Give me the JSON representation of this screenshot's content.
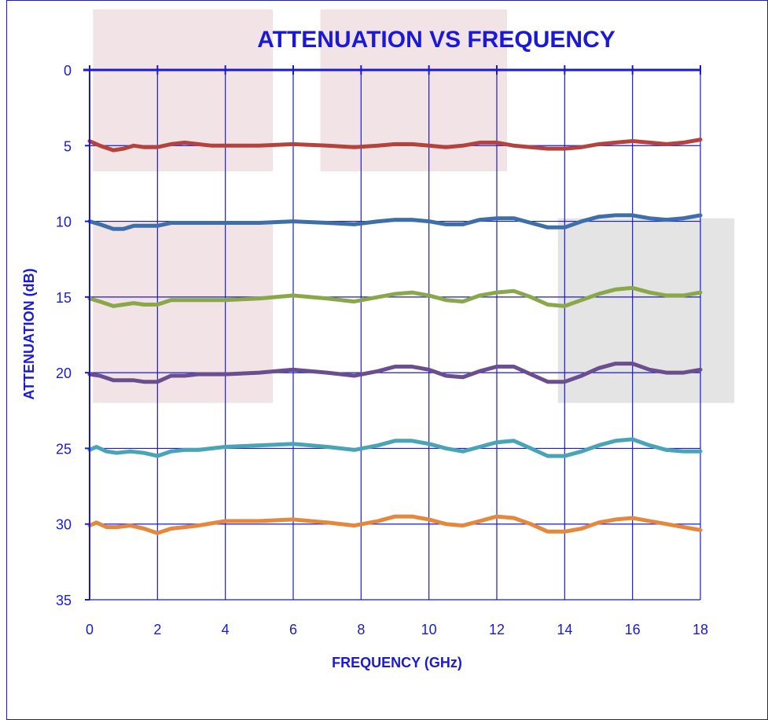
{
  "chart_data": {
    "type": "line",
    "title": "ATTENUATION VS FREQUENCY",
    "xlabel": "FREQUENCY (GHz)",
    "ylabel": "ATTENUATION (dB)",
    "xlim": [
      0,
      18
    ],
    "ylim": [
      0,
      35
    ],
    "y_inverted": true,
    "grid": true,
    "xticks": [
      "0",
      "2",
      "4",
      "6",
      "8",
      "10",
      "12",
      "14",
      "16",
      "18"
    ],
    "yticks": [
      "0",
      "5",
      "10",
      "15",
      "20",
      "25",
      "30",
      "35"
    ],
    "colors": {
      "axis": "#1a1ad6",
      "grid": "#1a1ad6",
      "band_pink": "#f2e4e6",
      "band_gray": "#e4e4e4"
    },
    "shaded_regions": [
      {
        "x": [
          0.1,
          5.4
        ],
        "y": [
          -4,
          6.7
        ],
        "color": "pink"
      },
      {
        "x": [
          6.8,
          12.3
        ],
        "y": [
          -4,
          6.7
        ],
        "color": "pink"
      },
      {
        "x": [
          0.1,
          5.4
        ],
        "y": [
          10,
          22
        ],
        "color": "pink"
      },
      {
        "x": [
          13.8,
          19.0
        ],
        "y": [
          9.8,
          22
        ],
        "color": "gray"
      }
    ],
    "series": [
      {
        "color": "#b5433d",
        "x": [
          0,
          0.3,
          0.7,
          1.0,
          1.3,
          1.6,
          2.0,
          2.4,
          2.8,
          3.2,
          3.6,
          4.0,
          5.0,
          6.0,
          7.0,
          7.8,
          8.5,
          9.0,
          9.5,
          10.0,
          10.5,
          11.0,
          11.5,
          12.0,
          12.5,
          13.0,
          13.5,
          14.0,
          14.5,
          15.0,
          15.5,
          16.0,
          16.5,
          17.0,
          17.5,
          18.0
        ],
        "y": [
          4.7,
          5.0,
          5.3,
          5.2,
          5.0,
          5.1,
          5.1,
          4.9,
          4.8,
          4.9,
          5.0,
          5.0,
          5.0,
          4.9,
          5.0,
          5.1,
          5.0,
          4.9,
          4.9,
          5.0,
          5.1,
          5.0,
          4.8,
          4.8,
          5.0,
          5.1,
          5.2,
          5.2,
          5.1,
          4.9,
          4.8,
          4.7,
          4.8,
          4.9,
          4.8,
          4.6
        ]
      },
      {
        "color": "#3f6fa8",
        "x": [
          0,
          0.3,
          0.7,
          1.0,
          1.3,
          1.6,
          2.0,
          2.4,
          2.8,
          3.2,
          4.0,
          5.0,
          6.0,
          7.0,
          7.8,
          8.5,
          9.0,
          9.5,
          10.0,
          10.5,
          11.0,
          11.5,
          12.0,
          12.5,
          13.0,
          13.5,
          14.0,
          14.5,
          15.0,
          15.5,
          16.0,
          16.5,
          17.0,
          17.5,
          18.0
        ],
        "y": [
          10.0,
          10.2,
          10.5,
          10.5,
          10.3,
          10.3,
          10.3,
          10.1,
          10.1,
          10.1,
          10.1,
          10.1,
          10.0,
          10.1,
          10.2,
          10.0,
          9.9,
          9.9,
          10.0,
          10.2,
          10.2,
          9.9,
          9.8,
          9.8,
          10.1,
          10.4,
          10.4,
          10.0,
          9.7,
          9.6,
          9.6,
          9.8,
          9.9,
          9.8,
          9.6
        ]
      },
      {
        "color": "#8aa84a",
        "x": [
          0,
          0.3,
          0.7,
          1.0,
          1.3,
          1.6,
          2.0,
          2.4,
          2.8,
          3.2,
          4.0,
          5.0,
          6.0,
          7.0,
          7.8,
          8.5,
          9.0,
          9.5,
          10.0,
          10.5,
          11.0,
          11.5,
          12.0,
          12.5,
          13.0,
          13.5,
          14.0,
          14.5,
          15.0,
          15.5,
          16.0,
          16.5,
          17.0,
          17.5,
          18.0
        ],
        "y": [
          15.1,
          15.3,
          15.6,
          15.5,
          15.4,
          15.5,
          15.5,
          15.2,
          15.2,
          15.2,
          15.2,
          15.1,
          14.9,
          15.1,
          15.3,
          15.0,
          14.8,
          14.7,
          14.9,
          15.2,
          15.3,
          14.9,
          14.7,
          14.6,
          15.0,
          15.5,
          15.6,
          15.2,
          14.8,
          14.5,
          14.4,
          14.7,
          14.9,
          14.9,
          14.7
        ]
      },
      {
        "color": "#6a4e8e",
        "x": [
          0,
          0.3,
          0.7,
          1.0,
          1.3,
          1.6,
          2.0,
          2.4,
          2.8,
          3.2,
          4.0,
          5.0,
          6.0,
          7.0,
          7.8,
          8.5,
          9.0,
          9.5,
          10.0,
          10.5,
          11.0,
          11.5,
          12.0,
          12.5,
          13.0,
          13.5,
          14.0,
          14.5,
          15.0,
          15.5,
          16.0,
          16.5,
          17.0,
          17.5,
          18.0
        ],
        "y": [
          20.1,
          20.2,
          20.5,
          20.5,
          20.5,
          20.6,
          20.6,
          20.2,
          20.2,
          20.1,
          20.1,
          20.0,
          19.8,
          20.0,
          20.2,
          19.9,
          19.6,
          19.6,
          19.8,
          20.2,
          20.3,
          19.9,
          19.6,
          19.6,
          20.1,
          20.6,
          20.6,
          20.2,
          19.7,
          19.4,
          19.4,
          19.8,
          20.0,
          20.0,
          19.8
        ]
      },
      {
        "color": "#4aa4b8",
        "x": [
          0,
          0.2,
          0.5,
          0.8,
          1.2,
          1.6,
          2.0,
          2.4,
          2.8,
          3.2,
          4.0,
          5.0,
          6.0,
          7.0,
          7.8,
          8.5,
          9.0,
          9.5,
          10.0,
          10.5,
          11.0,
          11.5,
          12.0,
          12.5,
          13.0,
          13.5,
          14.0,
          14.5,
          15.0,
          15.5,
          16.0,
          16.5,
          17.0,
          17.5,
          18.0
        ],
        "y": [
          25.1,
          24.9,
          25.2,
          25.3,
          25.2,
          25.3,
          25.5,
          25.2,
          25.1,
          25.1,
          24.9,
          24.8,
          24.7,
          24.9,
          25.1,
          24.8,
          24.5,
          24.5,
          24.7,
          25.0,
          25.2,
          24.9,
          24.6,
          24.5,
          25.0,
          25.5,
          25.5,
          25.2,
          24.8,
          24.5,
          24.4,
          24.8,
          25.1,
          25.2,
          25.2
        ]
      },
      {
        "color": "#e3883c",
        "x": [
          0,
          0.2,
          0.5,
          0.8,
          1.2,
          1.6,
          2.0,
          2.4,
          2.8,
          3.2,
          4.0,
          5.0,
          6.0,
          7.0,
          7.8,
          8.5,
          9.0,
          9.5,
          10.0,
          10.5,
          11.0,
          11.5,
          12.0,
          12.5,
          13.0,
          13.5,
          14.0,
          14.5,
          15.0,
          15.5,
          16.0,
          16.5,
          17.0,
          17.5,
          18.0
        ],
        "y": [
          30.1,
          29.9,
          30.2,
          30.2,
          30.1,
          30.3,
          30.6,
          30.3,
          30.2,
          30.1,
          29.8,
          29.8,
          29.7,
          29.9,
          30.1,
          29.8,
          29.5,
          29.5,
          29.7,
          30.0,
          30.1,
          29.8,
          29.5,
          29.6,
          30.0,
          30.5,
          30.5,
          30.3,
          29.9,
          29.7,
          29.6,
          29.8,
          30.0,
          30.2,
          30.4
        ]
      }
    ]
  }
}
